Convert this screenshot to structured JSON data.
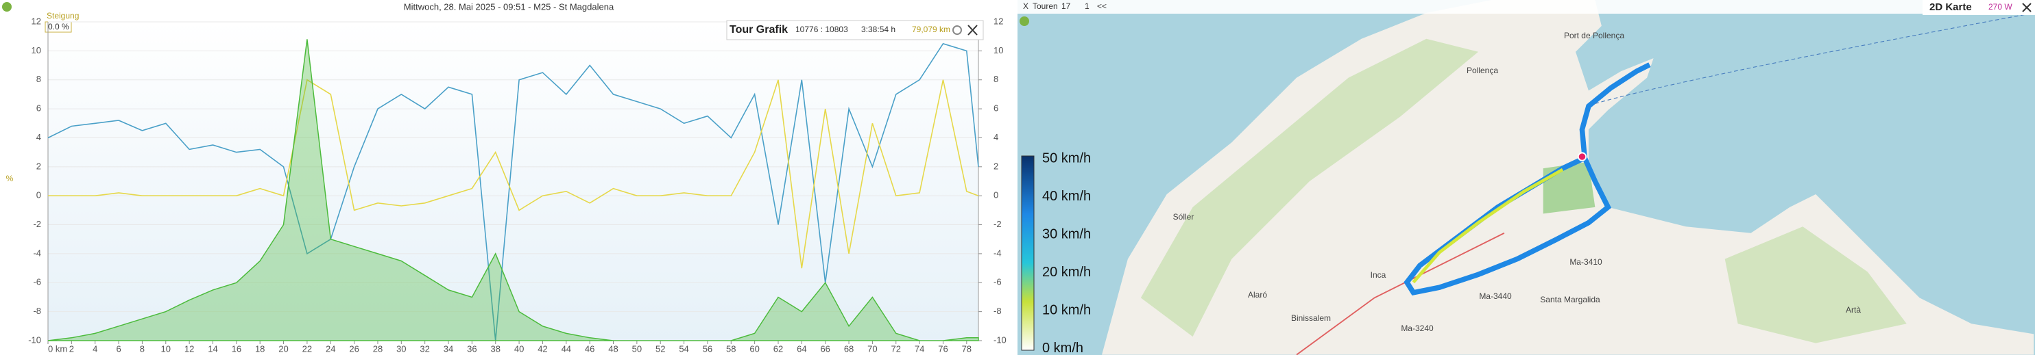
{
  "chart_data": {
    "type": "line",
    "title": "Mittwoch, 28. Mai 2025 - 09:51 - M25 - St Magdalena",
    "y_label": "%",
    "annotation": "Steigung",
    "current_value": "0.0 %",
    "x": [
      0,
      2,
      4,
      6,
      8,
      10,
      12,
      14,
      16,
      18,
      20,
      22,
      24,
      26,
      28,
      30,
      32,
      34,
      36,
      38,
      40,
      42,
      44,
      46,
      48,
      50,
      52,
      54,
      56,
      58,
      60,
      62,
      64,
      66,
      68,
      70,
      72,
      74,
      76,
      78,
      79
    ],
    "series": [
      {
        "color": "#4aa0c8",
        "fill": false,
        "values": [
          4,
          4.8,
          5,
          5.2,
          4.5,
          5,
          3.2,
          3.5,
          3,
          3.2,
          2,
          -4,
          -3,
          2,
          6,
          7,
          6,
          7.5,
          7,
          -10,
          8,
          8.5,
          7,
          9,
          7,
          6.5,
          6,
          5,
          5.5,
          4,
          7,
          -2,
          8,
          -6,
          6,
          2,
          7,
          8,
          10.5,
          10,
          2
        ]
      },
      {
        "color": "#e6d84a",
        "fill": false,
        "values": [
          0,
          0,
          0,
          0.2,
          0,
          0,
          0,
          0,
          0,
          0.5,
          0,
          8,
          7,
          -1,
          -0.5,
          -0.7,
          -0.5,
          0,
          0.5,
          3,
          -1,
          0,
          0.3,
          -0.5,
          0.5,
          0,
          0,
          0.2,
          0,
          0,
          3,
          8,
          -5,
          6,
          -4,
          5,
          0,
          0.2,
          8,
          0.3,
          0
        ]
      },
      {
        "color": "#4cbb3c",
        "fill": true,
        "values": [
          -10,
          -9.8,
          -9.5,
          -9,
          -8.5,
          -8,
          -7.2,
          -6.5,
          -6,
          -4.5,
          -2,
          10.8,
          -3,
          -3.5,
          -4,
          -4.5,
          -5.5,
          -6.5,
          -7,
          -4,
          -8,
          -9,
          -9.5,
          -9.8,
          -10,
          -10,
          -10,
          -10,
          -10,
          -10,
          -9.5,
          -7,
          -8,
          -6,
          -9,
          -7,
          -9.5,
          -10,
          -10,
          -9.8,
          -9.8
        ]
      }
    ],
    "xlim": [
      0,
      79
    ],
    "xticks": [
      {
        "value": 0,
        "label": "0 km"
      },
      2,
      4,
      6,
      8,
      10,
      12,
      14,
      16,
      18,
      20,
      22,
      24,
      26,
      28,
      30,
      32,
      34,
      36,
      38,
      40,
      42,
      44,
      46,
      48,
      50,
      52,
      54,
      56,
      58,
      60,
      62,
      64,
      66,
      68,
      70,
      72,
      74,
      76,
      78
    ],
    "ylim": [
      -10,
      12
    ],
    "yticks": [
      -10,
      -8,
      -6,
      -4,
      -2,
      0,
      2,
      4,
      6,
      8,
      10,
      12
    ],
    "y2lim": [
      -10,
      12
    ],
    "y2ticks": [
      -10,
      -8,
      -6,
      -4,
      -2,
      0,
      2,
      4,
      6,
      8,
      10,
      12
    ]
  },
  "tour_panel": {
    "title": "Tour Grafik",
    "range": "10776 : 10803",
    "duration": "3:38:54 h",
    "distance": "79,079 km"
  },
  "map": {
    "toolbar": [
      "X",
      "Touren",
      "17",
      "1",
      "<<"
    ],
    "title": "2D Karte",
    "power": "270 W",
    "legend": [
      "50 km/h",
      "40 km/h",
      "30 km/h",
      "20 km/h",
      "10 km/h",
      "0 km/h"
    ],
    "places": [
      "Port de Pollença",
      "Pollença",
      "Sóller",
      "Inca",
      "Alaró",
      "Binissalem",
      "Santa Margalida",
      "Artà",
      "Ma-3440",
      "Ma-3410",
      "Ma-3240"
    ]
  }
}
